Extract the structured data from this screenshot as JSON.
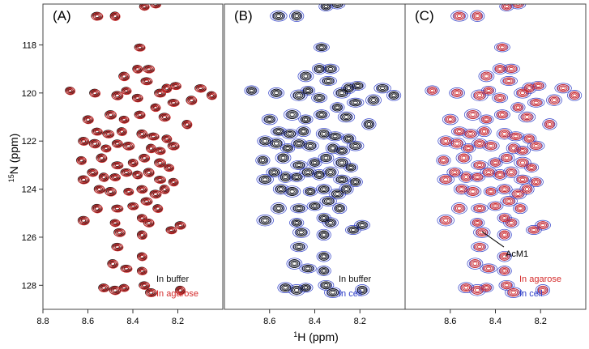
{
  "chart_data": {
    "type": "contour",
    "ylabel_sup": "15",
    "ylabel_rest": "N (ppm)",
    "xlabel_sup": "1",
    "xlabel_rest": "H (ppm)",
    "ylim": [
      129.0,
      116.3
    ],
    "y_ticks": [
      118,
      120,
      122,
      124,
      126,
      128
    ],
    "colors": {
      "buffer": "#111111",
      "agarose": "#d42a2a",
      "cell": "#2f3fc8"
    },
    "panels": [
      {
        "label": "(A)",
        "xlim": [
          8.8,
          8.0
        ],
        "x_ticks": [
          "8.8",
          "8.6",
          "8.4",
          "8.2"
        ],
        "x_tick_values": [
          8.8,
          8.6,
          8.4,
          8.2
        ],
        "legend": [
          {
            "text": "In buffer",
            "color": "#111111"
          },
          {
            "text": "In agarose",
            "color": "#d42a2a"
          }
        ],
        "layers": [
          "buffer",
          "agarose"
        ]
      },
      {
        "label": "(B)",
        "xlim": [
          8.8,
          8.0
        ],
        "x_ticks": [
          "8.6",
          "8.4",
          "8.2"
        ],
        "x_tick_values": [
          8.6,
          8.4,
          8.2
        ],
        "legend": [
          {
            "text": "In buffer",
            "color": "#111111"
          },
          {
            "text": "In cell",
            "color": "#2f3fc8"
          }
        ],
        "layers": [
          "cell",
          "buffer"
        ]
      },
      {
        "label": "(C)",
        "xlim": [
          8.8,
          8.0
        ],
        "x_ticks": [
          "8.6",
          "8.4",
          "8.2"
        ],
        "x_tick_values": [
          8.6,
          8.4,
          8.2
        ],
        "legend": [
          {
            "text": "In agarose",
            "color": "#d42a2a"
          },
          {
            "text": "In cell",
            "color": "#2f3fc8"
          }
        ],
        "layers": [
          "cell",
          "agarose"
        ],
        "annotation": {
          "text": "AcM1",
          "peak_x": 8.47,
          "peak_y": 125.7
        }
      }
    ],
    "peaks": [
      [
        8.35,
        116.4
      ],
      [
        8.3,
        116.3
      ],
      [
        8.56,
        116.8
      ],
      [
        8.48,
        116.8
      ],
      [
        8.37,
        118.1
      ],
      [
        8.33,
        119.0
      ],
      [
        8.38,
        119.0
      ],
      [
        8.44,
        119.3
      ],
      [
        8.34,
        119.5
      ],
      [
        8.68,
        119.9
      ],
      [
        8.57,
        120.0
      ],
      [
        8.47,
        120.1
      ],
      [
        8.43,
        119.9
      ],
      [
        8.38,
        120.2
      ],
      [
        8.28,
        120.0
      ],
      [
        8.25,
        119.8
      ],
      [
        8.21,
        119.7
      ],
      [
        8.1,
        119.8
      ],
      [
        8.05,
        120.1
      ],
      [
        8.14,
        120.3
      ],
      [
        8.22,
        120.4
      ],
      [
        8.3,
        120.6
      ],
      [
        8.6,
        121.1
      ],
      [
        8.5,
        120.9
      ],
      [
        8.44,
        121.1
      ],
      [
        8.37,
        120.9
      ],
      [
        8.26,
        121.0
      ],
      [
        8.16,
        121.3
      ],
      [
        8.56,
        121.6
      ],
      [
        8.51,
        121.7
      ],
      [
        8.45,
        121.6
      ],
      [
        8.36,
        121.7
      ],
      [
        8.31,
        121.8
      ],
      [
        8.25,
        121.9
      ],
      [
        8.62,
        122.0
      ],
      [
        8.57,
        122.1
      ],
      [
        8.52,
        122.3
      ],
      [
        8.47,
        122.1
      ],
      [
        8.42,
        122.2
      ],
      [
        8.32,
        122.3
      ],
      [
        8.28,
        122.4
      ],
      [
        8.22,
        122.2
      ],
      [
        8.63,
        122.8
      ],
      [
        8.54,
        122.7
      ],
      [
        8.47,
        123.0
      ],
      [
        8.4,
        122.9
      ],
      [
        8.35,
        122.7
      ],
      [
        8.28,
        122.9
      ],
      [
        8.24,
        123.1
      ],
      [
        8.58,
        123.3
      ],
      [
        8.62,
        123.6
      ],
      [
        8.53,
        123.5
      ],
      [
        8.48,
        123.5
      ],
      [
        8.43,
        123.3
      ],
      [
        8.38,
        123.4
      ],
      [
        8.33,
        123.3
      ],
      [
        8.28,
        123.6
      ],
      [
        8.22,
        123.7
      ],
      [
        8.55,
        124.0
      ],
      [
        8.5,
        124.1
      ],
      [
        8.42,
        124.1
      ],
      [
        8.36,
        124.0
      ],
      [
        8.3,
        124.2
      ],
      [
        8.26,
        124.0
      ],
      [
        8.4,
        124.7
      ],
      [
        8.34,
        124.5
      ],
      [
        8.29,
        124.8
      ],
      [
        8.56,
        124.8
      ],
      [
        8.47,
        124.8
      ],
      [
        8.36,
        125.2
      ],
      [
        8.33,
        125.4
      ],
      [
        8.62,
        125.3
      ],
      [
        8.48,
        125.4
      ],
      [
        8.19,
        125.5
      ],
      [
        8.46,
        125.8
      ],
      [
        8.36,
        125.9
      ],
      [
        8.23,
        125.7
      ],
      [
        8.47,
        126.4
      ],
      [
        8.36,
        126.8
      ],
      [
        8.49,
        127.1
      ],
      [
        8.43,
        127.3
      ],
      [
        8.36,
        127.4
      ],
      [
        8.53,
        128.1
      ],
      [
        8.48,
        128.2
      ],
      [
        8.44,
        128.1
      ],
      [
        8.35,
        128.0
      ],
      [
        8.32,
        128.3
      ],
      [
        8.19,
        128.2
      ]
    ]
  }
}
